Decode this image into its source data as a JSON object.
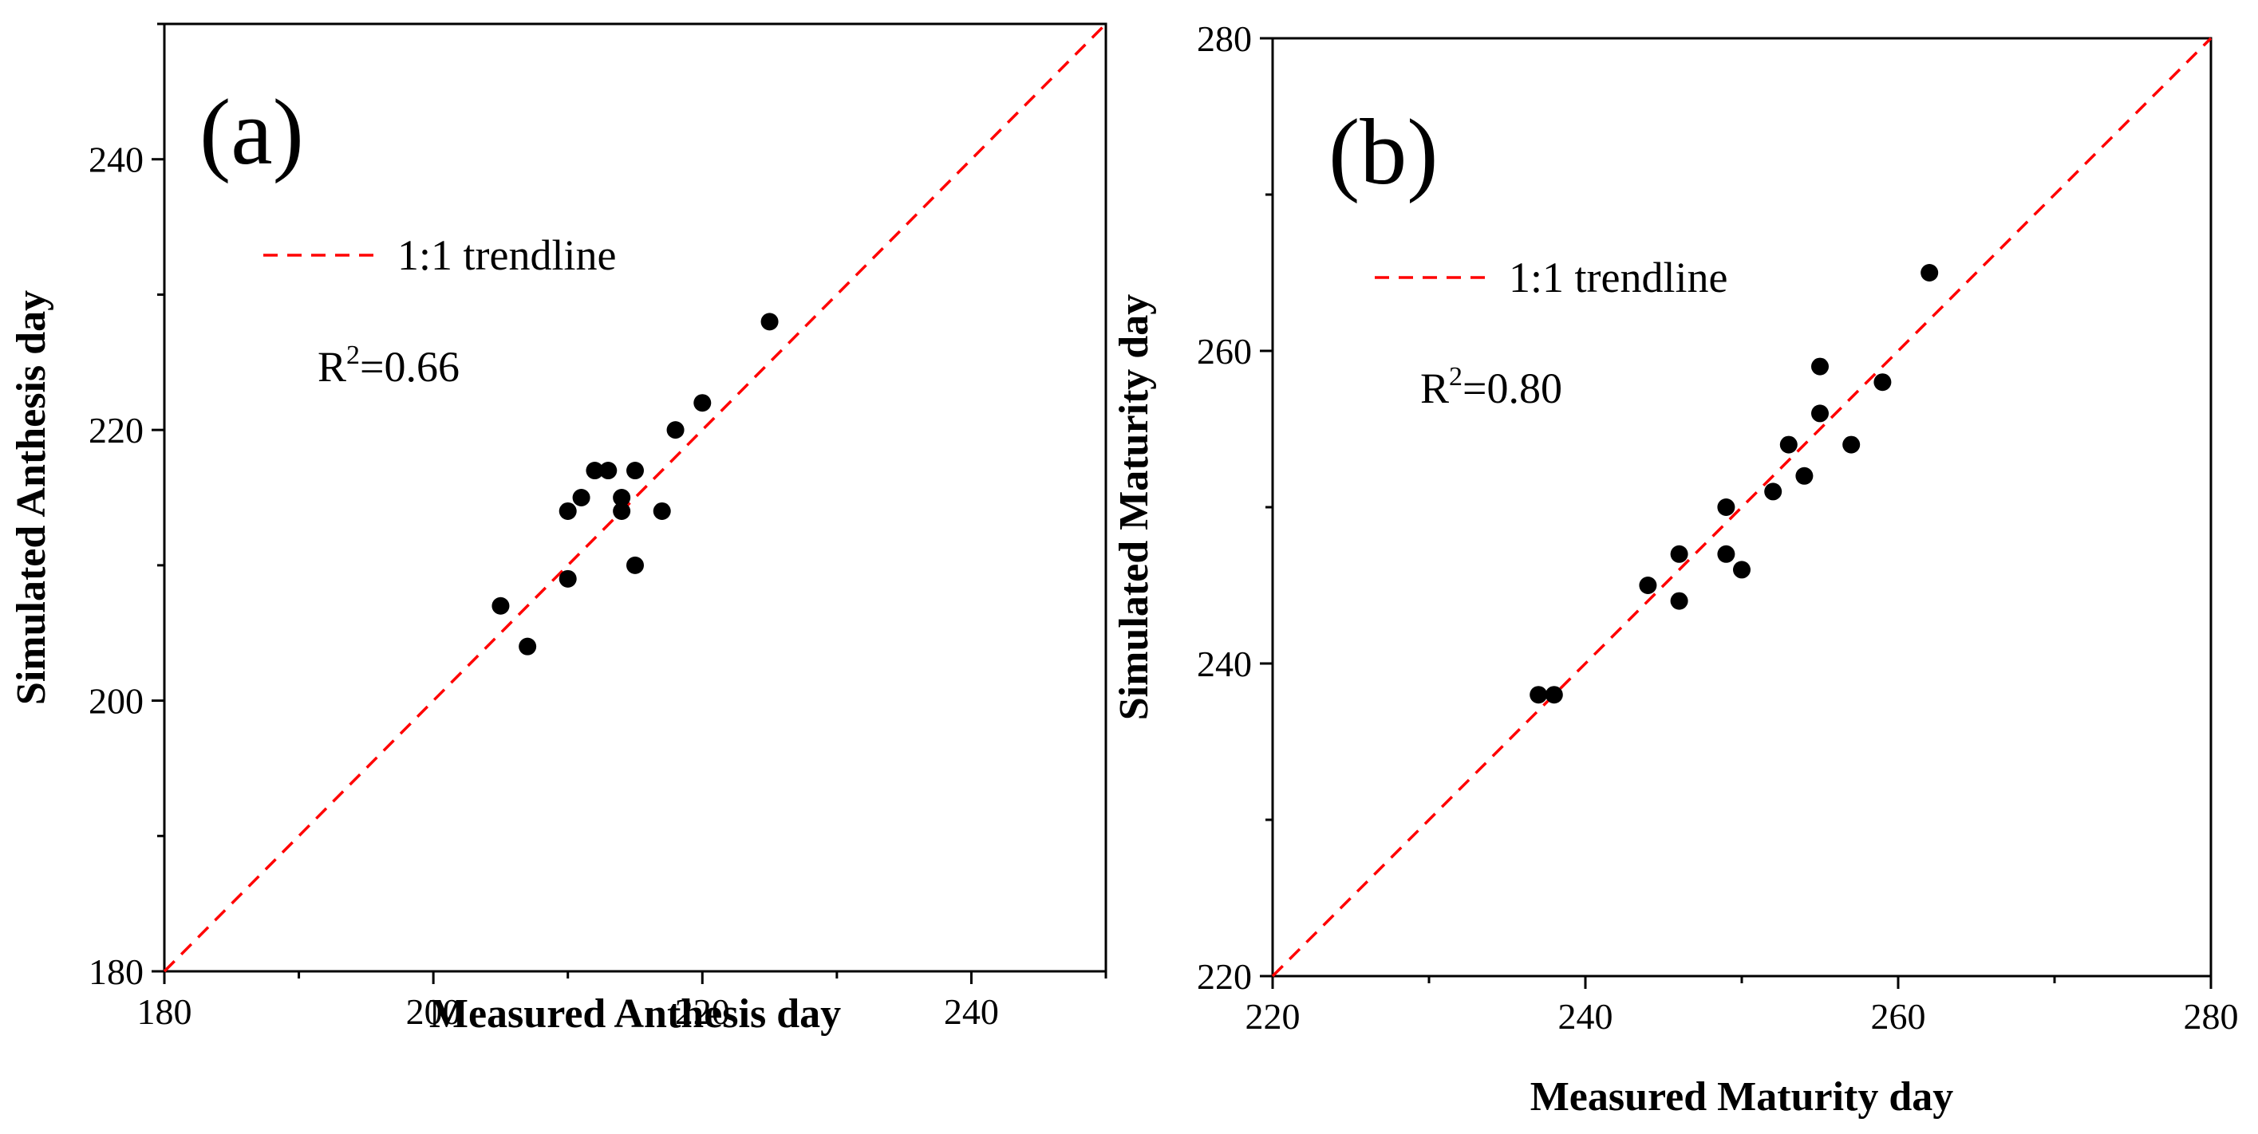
{
  "colors": {
    "ink": "#000000",
    "trendline": "#ff0000",
    "background": "#ffffff"
  },
  "chart_data": [
    {
      "type": "scatter",
      "panel_label": "(a)",
      "xlabel": "Measured Anthesis day",
      "ylabel": "Simulated Anthesis day",
      "xlim": [
        180,
        250
      ],
      "ylim": [
        180,
        250
      ],
      "xticks": [
        180,
        200,
        220,
        240
      ],
      "yticks": [
        180,
        200,
        220,
        240
      ],
      "legend": {
        "label": "1:1 trendline",
        "position": "top-left"
      },
      "r2": {
        "prefix": "R",
        "sup": "2",
        "value": "=0.66"
      },
      "points": [
        {
          "x": 205,
          "y": 207
        },
        {
          "x": 207,
          "y": 204
        },
        {
          "x": 210,
          "y": 214
        },
        {
          "x": 210,
          "y": 209
        },
        {
          "x": 211,
          "y": 215
        },
        {
          "x": 212,
          "y": 217
        },
        {
          "x": 213,
          "y": 217
        },
        {
          "x": 214,
          "y": 215
        },
        {
          "x": 214,
          "y": 214
        },
        {
          "x": 215,
          "y": 217
        },
        {
          "x": 215,
          "y": 210
        },
        {
          "x": 217,
          "y": 214
        },
        {
          "x": 218,
          "y": 220
        },
        {
          "x": 220,
          "y": 222
        },
        {
          "x": 225,
          "y": 228
        }
      ]
    },
    {
      "type": "scatter",
      "panel_label": "(b)",
      "xlabel": "Measured Maturity day",
      "ylabel": "Simulated Maturity day",
      "xlim": [
        220,
        280
      ],
      "ylim": [
        220,
        280
      ],
      "xticks": [
        220,
        240,
        260,
        280
      ],
      "yticks": [
        220,
        240,
        260,
        280
      ],
      "legend": {
        "label": "1:1 trendline",
        "position": "top-left"
      },
      "r2": {
        "prefix": "R",
        "sup": "2",
        "value": "=0.80"
      },
      "points": [
        {
          "x": 237,
          "y": 238
        },
        {
          "x": 238,
          "y": 238
        },
        {
          "x": 244,
          "y": 245
        },
        {
          "x": 246,
          "y": 247
        },
        {
          "x": 246,
          "y": 244
        },
        {
          "x": 249,
          "y": 250
        },
        {
          "x": 249,
          "y": 247
        },
        {
          "x": 250,
          "y": 246
        },
        {
          "x": 252,
          "y": 251
        },
        {
          "x": 253,
          "y": 254
        },
        {
          "x": 254,
          "y": 252
        },
        {
          "x": 255,
          "y": 259
        },
        {
          "x": 255,
          "y": 256
        },
        {
          "x": 257,
          "y": 254
        },
        {
          "x": 259,
          "y": 258
        },
        {
          "x": 262,
          "y": 265
        }
      ]
    }
  ]
}
